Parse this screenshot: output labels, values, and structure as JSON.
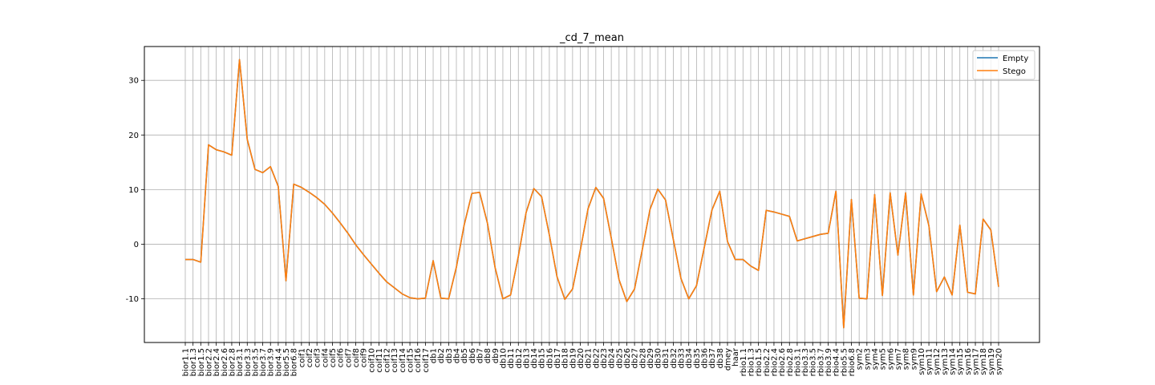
{
  "chart_data": {
    "type": "line",
    "title": "_cd_7_mean",
    "xlabel": "",
    "ylabel": "",
    "ylim": [
      -18,
      36.2
    ],
    "yticks": [
      -10,
      0,
      10,
      20,
      30
    ],
    "grid": true,
    "legend_position": "upper-right",
    "categories": [
      "bior1.1",
      "bior1.3",
      "bior1.5",
      "bior2.2",
      "bior2.4",
      "bior2.6",
      "bior2.8",
      "bior3.1",
      "bior3.3",
      "bior3.5",
      "bior3.7",
      "bior3.9",
      "bior4.4",
      "bior5.5",
      "bior6.8",
      "coif1",
      "coif2",
      "coif3",
      "coif4",
      "coif5",
      "coif6",
      "coif7",
      "coif8",
      "coif9",
      "coif10",
      "coif11",
      "coif12",
      "coif13",
      "coif14",
      "coif15",
      "coif16",
      "coif17",
      "db1",
      "db2",
      "db3",
      "db4",
      "db5",
      "db6",
      "db7",
      "db8",
      "db9",
      "db10",
      "db11",
      "db12",
      "db13",
      "db14",
      "db15",
      "db16",
      "db17",
      "db18",
      "db19",
      "db20",
      "db21",
      "db22",
      "db23",
      "db24",
      "db25",
      "db26",
      "db27",
      "db28",
      "db29",
      "db30",
      "db31",
      "db32",
      "db33",
      "db34",
      "db35",
      "db36",
      "db37",
      "db38",
      "dmey",
      "haar",
      "rbio1.1",
      "rbio1.3",
      "rbio1.5",
      "rbio2.2",
      "rbio2.4",
      "rbio2.6",
      "rbio2.8",
      "rbio3.1",
      "rbio3.3",
      "rbio3.5",
      "rbio3.7",
      "rbio3.9",
      "rbio4.4",
      "rbio5.5",
      "rbio6.8",
      "sym2",
      "sym3",
      "sym4",
      "sym5",
      "sym6",
      "sym7",
      "sym8",
      "sym9",
      "sym10",
      "sym11",
      "sym12",
      "sym13",
      "sym14",
      "sym15",
      "sym16",
      "sym17",
      "sym18",
      "sym19",
      "sym20"
    ],
    "series": [
      {
        "name": "Empty",
        "color": "#1f77b4",
        "values": [
          -2.8,
          -2.8,
          -3.3,
          18.2,
          17.3,
          16.9,
          16.3,
          33.8,
          19.2,
          13.7,
          13.1,
          14.2,
          10.6,
          -6.7,
          11.0,
          10.4,
          9.5,
          8.5,
          7.3,
          5.7,
          3.9,
          2.0,
          -0.1,
          -1.9,
          -3.6,
          -5.3,
          -6.9,
          -8.0,
          -9.1,
          -9.8,
          -10.0,
          -9.9,
          -3.0,
          -9.9,
          -10.0,
          -4.2,
          3.5,
          9.3,
          9.5,
          3.9,
          -4.3,
          -10.0,
          -9.3,
          -2.2,
          5.8,
          10.2,
          8.7,
          1.7,
          -6.0,
          -10.1,
          -8.2,
          -1.1,
          6.5,
          10.4,
          8.4,
          1.1,
          -6.5,
          -10.5,
          -8.2,
          -1.0,
          6.4,
          10.1,
          8.1,
          0.9,
          -6.3,
          -10.0,
          -7.6,
          -0.6,
          6.3,
          9.7,
          0.5,
          -2.8,
          -2.8,
          -4.0,
          -4.8,
          6.2,
          5.9,
          5.5,
          5.1,
          0.6,
          1.0,
          1.4,
          1.8,
          2.0,
          9.7,
          -15.3,
          8.2,
          -9.9,
          -10.0,
          9.1,
          -9.4,
          9.4,
          -2.0,
          9.4,
          -9.3,
          9.2,
          3.4,
          -8.7,
          -6.0,
          -9.3,
          3.5,
          -8.8,
          -9.1,
          4.6,
          2.6,
          -7.8
        ]
      },
      {
        "name": "Stego",
        "color": "#ff7f0e",
        "values": [
          -2.8,
          -2.8,
          -3.3,
          18.2,
          17.3,
          16.9,
          16.3,
          33.8,
          19.2,
          13.7,
          13.1,
          14.2,
          10.6,
          -6.7,
          11.0,
          10.4,
          9.5,
          8.5,
          7.3,
          5.7,
          3.9,
          2.0,
          -0.1,
          -1.9,
          -3.6,
          -5.3,
          -6.9,
          -8.0,
          -9.1,
          -9.8,
          -10.0,
          -9.9,
          -3.0,
          -9.9,
          -10.0,
          -4.2,
          3.5,
          9.3,
          9.5,
          3.9,
          -4.3,
          -10.0,
          -9.3,
          -2.2,
          5.8,
          10.2,
          8.7,
          1.7,
          -6.0,
          -10.1,
          -8.2,
          -1.1,
          6.5,
          10.4,
          8.4,
          1.1,
          -6.5,
          -10.5,
          -8.2,
          -1.0,
          6.4,
          10.1,
          8.1,
          0.9,
          -6.3,
          -10.0,
          -7.6,
          -0.6,
          6.3,
          9.7,
          0.5,
          -2.8,
          -2.8,
          -4.0,
          -4.8,
          6.2,
          5.9,
          5.5,
          5.1,
          0.6,
          1.0,
          1.4,
          1.8,
          2.0,
          9.7,
          -15.3,
          8.2,
          -9.9,
          -10.0,
          9.1,
          -9.4,
          9.4,
          -2.0,
          9.4,
          -9.3,
          9.2,
          3.4,
          -8.7,
          -6.0,
          -9.3,
          3.5,
          -8.8,
          -9.1,
          4.6,
          2.6,
          -7.8
        ]
      }
    ]
  }
}
